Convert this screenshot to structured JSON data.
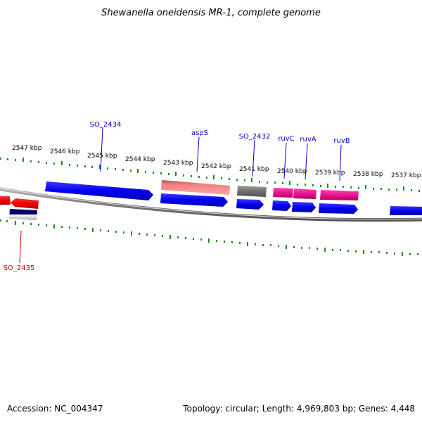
{
  "title": "Shewanella oneidensis MR-1, complete genome",
  "accession": "Accession: NC_004347",
  "summary": "Topology: circular; Length: 4,969,803 bp; Genes: 4,448",
  "scale": {
    "labels": [
      "2547 kbp",
      "2546 kbp",
      "2545 kbp",
      "2544 kbp",
      "2543 kbp",
      "2542 kbp",
      "2541 kbp",
      "2540 kbp",
      "2539 kbp",
      "2538 kbp",
      "2537 kbp"
    ]
  },
  "gene_labels": [
    {
      "name": "SO_2434",
      "color": "#0000cc"
    },
    {
      "name": "aspS",
      "color": "#0000cc"
    },
    {
      "name": "SO_2432",
      "color": "#0000cc"
    },
    {
      "name": "ruvC",
      "color": "#0000cc"
    },
    {
      "name": "ruvA",
      "color": "#0000cc"
    },
    {
      "name": "ruvB",
      "color": "#0000cc"
    },
    {
      "name": "SO_2435",
      "color": "#cc0000"
    }
  ],
  "colors": {
    "cds_blue": "#0000ee",
    "trna_pink": "#f08080",
    "gray": "#707070",
    "magenta": "#e8148c",
    "red": "#ee0000",
    "navy": "#000066",
    "tick_green": "#228b22",
    "backbone": "#888888"
  }
}
